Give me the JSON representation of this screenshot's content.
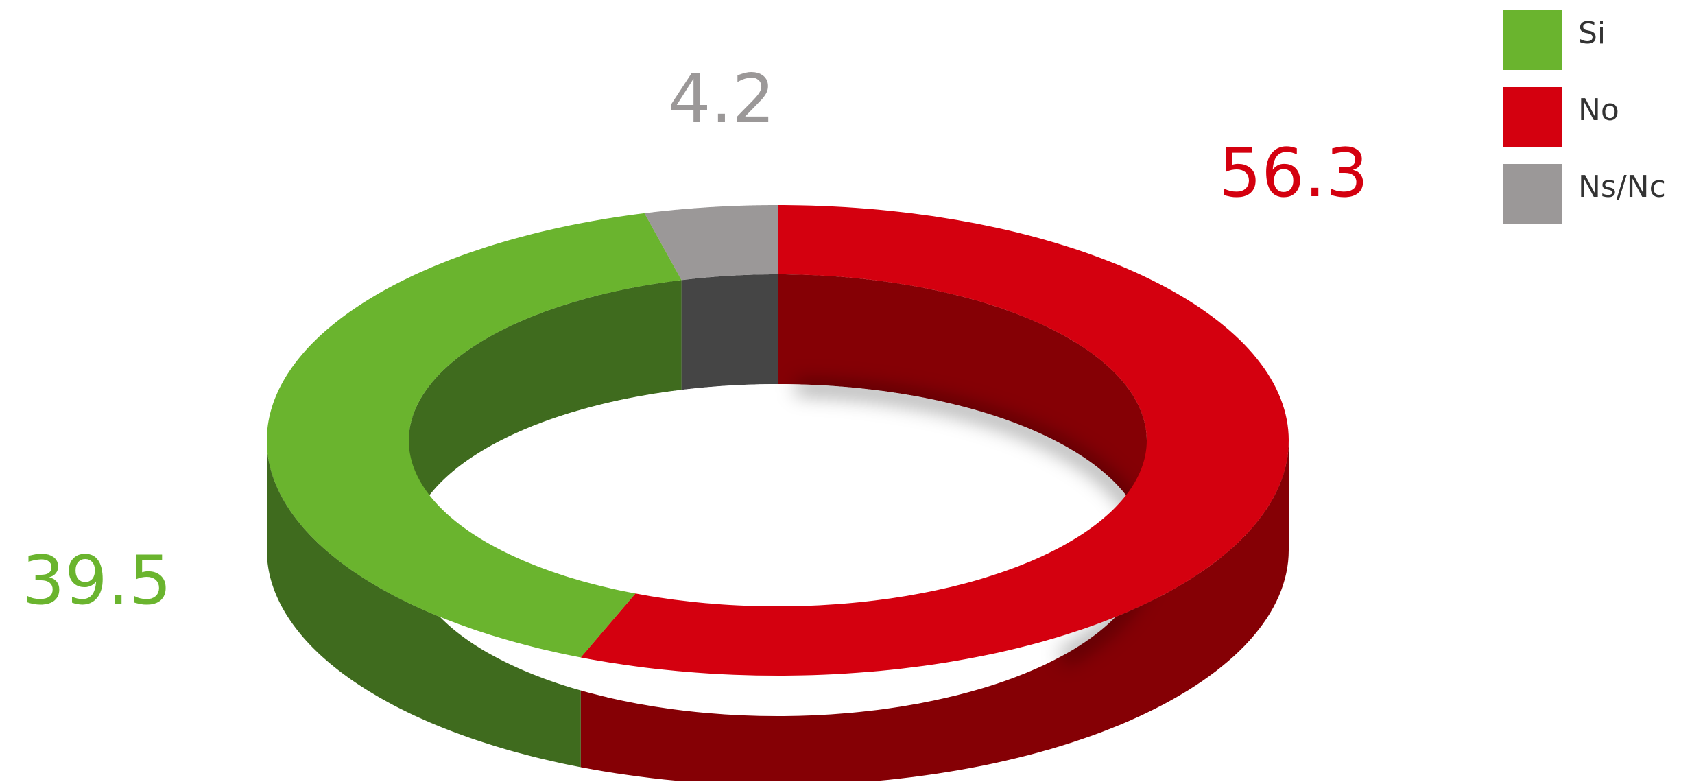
{
  "chart_data": {
    "type": "pie",
    "style": "3d-donut",
    "series": [
      {
        "name": "Si",
        "value": 39.5,
        "label": "39.5",
        "color": "#6ab42e",
        "side_color": "#3f6b1e"
      },
      {
        "name": "No",
        "value": 56.3,
        "label": "56.3",
        "color": "#d4000f",
        "side_color": "#850005"
      },
      {
        "name": "Ns/Nc",
        "value": 4.2,
        "label": "4.2",
        "color": "#9b9898",
        "side_color": "#454545"
      }
    ],
    "legend": {
      "position": "top-right",
      "items": [
        "Si",
        "No",
        "Ns/Nc"
      ]
    },
    "label_colors": {
      "Si": "#6ab42e",
      "No": "#d4000f",
      "Ns/Nc": "#9b9898"
    }
  }
}
